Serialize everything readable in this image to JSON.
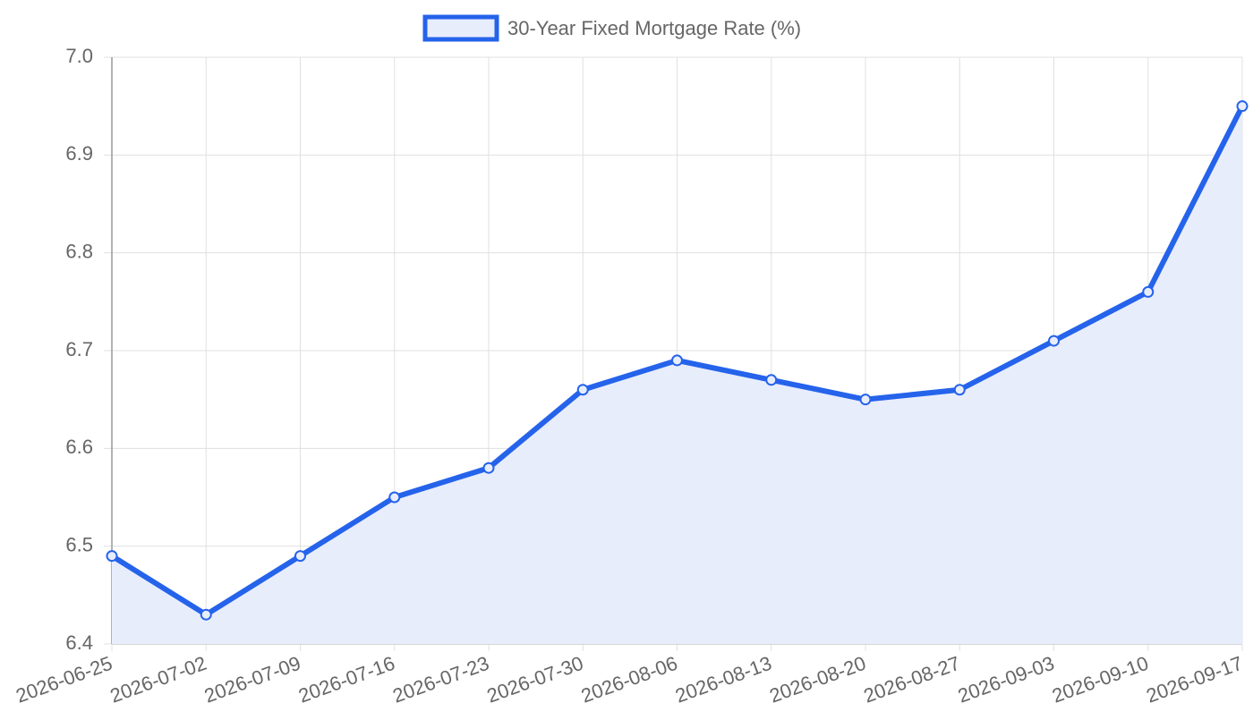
{
  "chart_data": {
    "type": "line",
    "categories": [
      "2026-06-25",
      "2026-07-02",
      "2026-07-09",
      "2026-07-16",
      "2026-07-23",
      "2026-07-30",
      "2026-08-06",
      "2026-08-13",
      "2026-08-20",
      "2026-08-27",
      "2026-09-03",
      "2026-09-10",
      "2026-09-17"
    ],
    "series": [
      {
        "name": "30-Year Fixed Mortgage Rate (%)",
        "color": "#2563eb",
        "fill_color": "#e8edfc",
        "values": [
          6.49,
          6.43,
          6.49,
          6.55,
          6.58,
          6.66,
          6.69,
          6.67,
          6.65,
          6.66,
          6.71,
          6.76,
          6.95
        ]
      }
    ],
    "ylim": [
      6.4,
      7.0
    ],
    "yticks": [
      6.4,
      6.5,
      6.6,
      6.7,
      6.8,
      6.9,
      {
        "value": 7.0,
        "label": "7.0"
      }
    ],
    "grid": true,
    "fill": true,
    "legend": "top"
  }
}
